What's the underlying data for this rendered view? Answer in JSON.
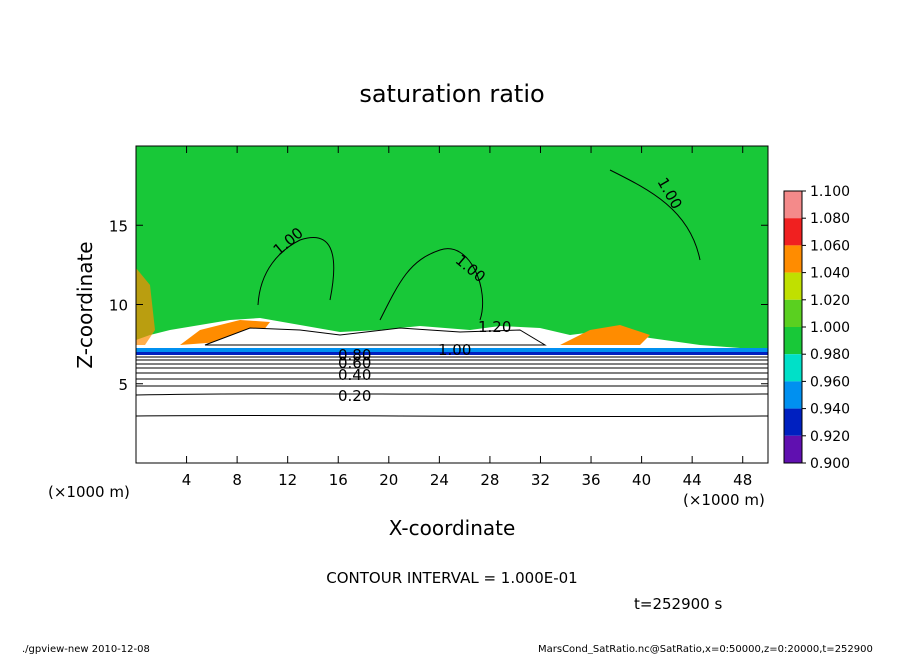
{
  "chart_data": {
    "type": "contour",
    "title": "saturation ratio",
    "x_label": "X-coordinate",
    "y_label": "Z-coordinate",
    "x_unit": "(×1000 m)",
    "y_unit": "(×1000 m)",
    "xlim": [
      0,
      50
    ],
    "xticks": [
      4,
      8,
      12,
      16,
      20,
      24,
      28,
      32,
      36,
      40,
      44,
      48
    ],
    "ylim": [
      0,
      20
    ],
    "yticks": [
      5,
      10,
      15
    ],
    "contour_labels": [
      "1.00",
      "1.00",
      "1.00",
      "1.20",
      "1.00",
      "0.80",
      "0.60",
      "0.40",
      "0.20"
    ],
    "contour_interval": "CONTOUR INTERVAL = 1.000E-01",
    "time": "t=252900 s",
    "footer_left": "./gpview-new  2010-12-08",
    "footer_right": "MarsCond_SatRatio.nc@SatRatio,x=0:50000,z=0:20000,t=252900",
    "colorbar": {
      "levels": [
        {
          "value": 1.1,
          "label": "1.100"
        },
        {
          "value": 1.08,
          "label": "1.080"
        },
        {
          "value": 1.06,
          "label": "1.060"
        },
        {
          "value": 1.04,
          "label": "1.040"
        },
        {
          "value": 1.02,
          "label": "1.020"
        },
        {
          "value": 1.0,
          "label": "1.000"
        },
        {
          "value": 0.98,
          "label": "0.980"
        },
        {
          "value": 0.96,
          "label": "0.960"
        },
        {
          "value": 0.94,
          "label": "0.940"
        },
        {
          "value": 0.92,
          "label": "0.920"
        },
        {
          "value": 0.9,
          "label": "0.900"
        }
      ],
      "colors": [
        "#f48a8a",
        "#f02020",
        "#ff8c00",
        "#c0e000",
        "#5ad020",
        "#18c838",
        "#00e0c8",
        "#0090f0",
        "#0020c0",
        "#6010b0"
      ]
    }
  }
}
